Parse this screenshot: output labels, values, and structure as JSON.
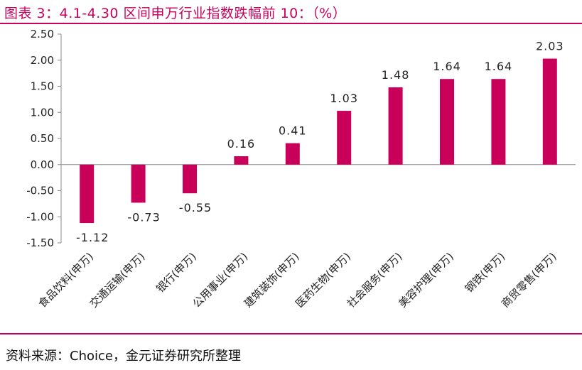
{
  "title": "图表 3：4.1-4.30 区间申万行业指数跌幅前 10：（%）",
  "source": "资料来源：Choice，金元证券研究所整理",
  "colors": {
    "bar": "#C8005A",
    "accent": "#C8005A",
    "axis": "#888888",
    "text": "#222222"
  },
  "chart_data": {
    "type": "bar",
    "title": "",
    "xlabel": "",
    "ylabel": "",
    "ylim": [
      -1.5,
      2.5
    ],
    "yticks": [
      "2.50",
      "2.00",
      "1.50",
      "1.00",
      "0.50",
      "0.00",
      "-0.50",
      "-1.00",
      "-1.50"
    ],
    "categories": [
      "食品饮料(申万)",
      "交通运输(申万)",
      "银行(申万)",
      "公用事业(申万)",
      "建筑装饰(申万)",
      "医药生物(申万)",
      "社会服务(申万)",
      "美容护理(申万)",
      "钢铁(申万)",
      "商贸零售(申万)"
    ],
    "values": [
      -1.12,
      -0.73,
      -0.55,
      0.16,
      0.41,
      1.03,
      1.48,
      1.64,
      1.64,
      2.03
    ],
    "data_labels": [
      "-1.12",
      "-0.73",
      "-0.55",
      "0.16",
      "0.41",
      "1.03",
      "1.48",
      "1.64",
      "1.64",
      "2.03"
    ],
    "grid": false,
    "legend": "none"
  }
}
